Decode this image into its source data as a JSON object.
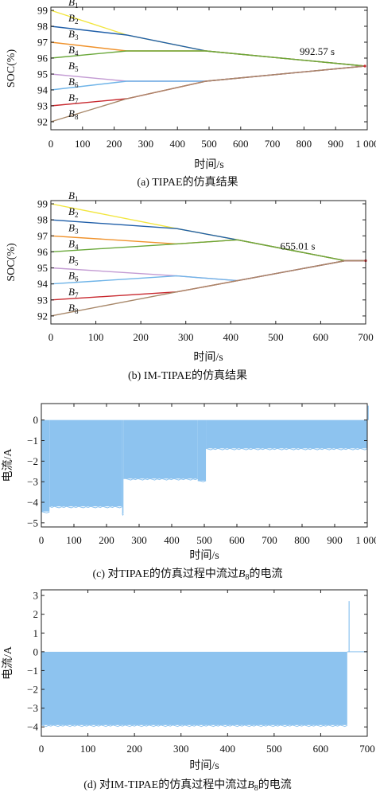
{
  "chart_data": [
    {
      "type": "line",
      "caption": "(a) TIPAE的仿真结果",
      "xlabel": "时间/s",
      "ylabel": "SOC(%)",
      "xlim": [
        0,
        1000
      ],
      "ylim": [
        91.5,
        99.2
      ],
      "xticks": [
        "0",
        "100",
        "200",
        "300",
        "400",
        "500",
        "600",
        "700",
        "800",
        "900",
        "1 000"
      ],
      "yticks": [
        "92",
        "93",
        "94",
        "95",
        "96",
        "97",
        "98",
        "99"
      ],
      "annotation": {
        "text": "992.57 s",
        "x": 992.57,
        "y": 95.5
      },
      "series": [
        {
          "name": "B",
          "sub": "1",
          "color": "#f2e640",
          "x": [
            0,
            240,
            490,
            992.57
          ],
          "y": [
            99,
            97.45,
            96.45,
            95.5
          ]
        },
        {
          "name": "B",
          "sub": "2",
          "color": "#1f5ea8",
          "x": [
            0,
            240,
            490,
            992.57
          ],
          "y": [
            98,
            97.45,
            96.45,
            95.5
          ]
        },
        {
          "name": "B",
          "sub": "3",
          "color": "#f0922b",
          "x": [
            0,
            240,
            490,
            992.57
          ],
          "y": [
            97,
            96.45,
            96.45,
            95.5
          ]
        },
        {
          "name": "B",
          "sub": "4",
          "color": "#6aa83a",
          "x": [
            0,
            240,
            490,
            992.57
          ],
          "y": [
            96,
            96.45,
            96.45,
            95.5
          ]
        },
        {
          "name": "B",
          "sub": "5",
          "color": "#c39bd3",
          "x": [
            0,
            240,
            490,
            992.57
          ],
          "y": [
            95,
            94.55,
            94.55,
            95.5
          ]
        },
        {
          "name": "B",
          "sub": "6",
          "color": "#6fb4e8",
          "x": [
            0,
            240,
            490,
            992.57
          ],
          "y": [
            94,
            94.55,
            94.55,
            95.5
          ]
        },
        {
          "name": "B",
          "sub": "7",
          "color": "#c8282e",
          "x": [
            0,
            240,
            490,
            992.57
          ],
          "y": [
            93,
            93.45,
            94.55,
            95.5
          ]
        },
        {
          "name": "B",
          "sub": "8",
          "color": "#a8886a",
          "x": [
            0,
            240,
            490,
            992.57
          ],
          "y": [
            92,
            93.45,
            94.55,
            95.5
          ]
        }
      ]
    },
    {
      "type": "line",
      "caption": "(b) IM-TIPAE的仿真结果",
      "xlabel": "时间/s",
      "ylabel": "SOC(%)",
      "xlim": [
        0,
        700
      ],
      "ylim": [
        91.5,
        99.2
      ],
      "xticks": [
        "0",
        "100",
        "200",
        "300",
        "400",
        "500",
        "600",
        "700"
      ],
      "yticks": [
        "92",
        "93",
        "94",
        "95",
        "96",
        "97",
        "98",
        "99"
      ],
      "annotation": {
        "text": "655.01 s",
        "x": 655.01,
        "y": 95.45
      },
      "series": [
        {
          "name": "B",
          "sub": "1",
          "color": "#f2e640",
          "x": [
            0,
            280,
            415,
            655.01,
            700
          ],
          "y": [
            99,
            97.45,
            96.75,
            95.45,
            95.45
          ]
        },
        {
          "name": "B",
          "sub": "2",
          "color": "#1f5ea8",
          "x": [
            0,
            280,
            415,
            655.01,
            700
          ],
          "y": [
            98,
            97.45,
            96.75,
            95.45,
            95.45
          ]
        },
        {
          "name": "B",
          "sub": "3",
          "color": "#f0922b",
          "x": [
            0,
            280,
            415,
            655.01,
            700
          ],
          "y": [
            97,
            96.5,
            96.75,
            95.45,
            95.45
          ]
        },
        {
          "name": "B",
          "sub": "4",
          "color": "#6aa83a",
          "x": [
            0,
            280,
            415,
            655.01,
            700
          ],
          "y": [
            96,
            96.5,
            96.75,
            95.45,
            95.45
          ]
        },
        {
          "name": "B",
          "sub": "5",
          "color": "#c39bd3",
          "x": [
            0,
            280,
            415,
            655.01,
            700
          ],
          "y": [
            95,
            94.5,
            94.2,
            95.45,
            95.45
          ]
        },
        {
          "name": "B",
          "sub": "6",
          "color": "#6fb4e8",
          "x": [
            0,
            280,
            415,
            655.01,
            700
          ],
          "y": [
            94,
            94.5,
            94.2,
            95.45,
            95.45
          ]
        },
        {
          "name": "B",
          "sub": "7",
          "color": "#c8282e",
          "x": [
            0,
            280,
            415,
            655.01,
            700
          ],
          "y": [
            93,
            93.5,
            94.2,
            95.45,
            95.45
          ]
        },
        {
          "name": "B",
          "sub": "8",
          "color": "#a8886a",
          "x": [
            0,
            280,
            415,
            655.01,
            700
          ],
          "y": [
            92,
            93.5,
            94.2,
            95.45,
            95.45
          ]
        }
      ]
    },
    {
      "type": "area",
      "caption": "(c) 对TIPAE的仿真过程中流过B8的电流",
      "caption_prefix": "(c) 对TIPAE的仿真过程中流过",
      "caption_var": "B",
      "caption_sub": "8",
      "caption_suffix": "的电流",
      "xlabel": "时间/s",
      "ylabel": "电流/A",
      "xlim": [
        0,
        1000
      ],
      "ylim": [
        -5.2,
        0.8
      ],
      "xticks": [
        "0",
        "100",
        "200",
        "300",
        "400",
        "500",
        "600",
        "700",
        "800",
        "900",
        "1 000"
      ],
      "yticks": [
        "-5",
        "-4",
        "-3",
        "-2",
        "-1",
        "0"
      ],
      "color": "#8dc3ef",
      "top": 0,
      "segments": [
        {
          "x0": 0,
          "x1": 25,
          "bottom": -4.45
        },
        {
          "x0": 25,
          "x1": 248,
          "bottom": -4.2
        },
        {
          "x0": 248,
          "x1": 252,
          "bottom": -4.55
        },
        {
          "x0": 252,
          "x1": 480,
          "bottom": -2.85
        },
        {
          "x0": 480,
          "x1": 505,
          "bottom": -2.95
        },
        {
          "x0": 505,
          "x1": 1000,
          "bottom": -1.38
        }
      ],
      "spike": {
        "x": 1003,
        "y": 0.7
      }
    },
    {
      "type": "area",
      "caption": "(d) 对IM-TIPAE的仿真过程中流过B8的电流",
      "caption_prefix": "(d) 对IM-TIPAE的仿真过程中流过",
      "caption_var": "B",
      "caption_sub": "8",
      "caption_suffix": "的电流",
      "xlabel": "时间/s",
      "ylabel": "电流/A",
      "xlim": [
        0,
        700
      ],
      "ylim": [
        -4.5,
        3.3
      ],
      "xticks": [
        "0",
        "100",
        "200",
        "300",
        "400",
        "500",
        "600",
        "700"
      ],
      "yticks": [
        "-4",
        "-3",
        "-2",
        "-1",
        "0",
        "1",
        "2",
        "3"
      ],
      "color": "#8dc3ef",
      "top": 0,
      "segments": [
        {
          "x0": 0,
          "x1": 657,
          "bottom": -3.9
        }
      ],
      "spike": {
        "x": 661,
        "y": 2.7
      }
    }
  ]
}
